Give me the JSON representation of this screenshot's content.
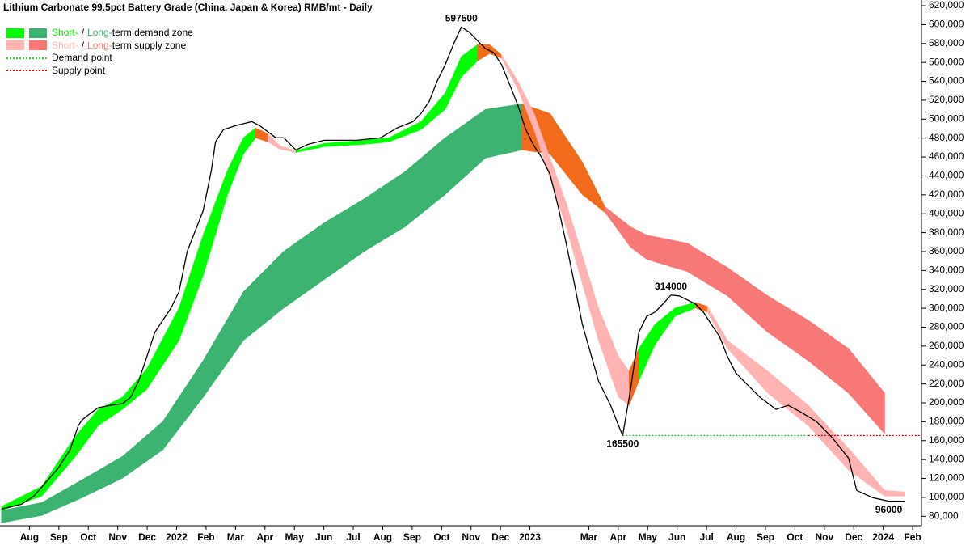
{
  "chart_data": {
    "type": "line",
    "title": "Lithium Carbonate 99.5pct Battery Grade (China, Japan & Korea) RMB/mt - Daily",
    "xlim": [
      0,
      31.3
    ],
    "xticks": [
      {
        "value": 1,
        "label": "Aug"
      },
      {
        "value": 2,
        "label": "Sep"
      },
      {
        "value": 3,
        "label": "Oct"
      },
      {
        "value": 4,
        "label": "Nov"
      },
      {
        "value": 5,
        "label": "Dec"
      },
      {
        "value": 6,
        "label": "2022"
      },
      {
        "value": 7,
        "label": "Feb"
      },
      {
        "value": 8,
        "label": "Mar"
      },
      {
        "value": 9,
        "label": "Apr"
      },
      {
        "value": 10,
        "label": "May"
      },
      {
        "value": 11,
        "label": "Jun"
      },
      {
        "value": 12,
        "label": "Jul"
      },
      {
        "value": 13,
        "label": "Aug"
      },
      {
        "value": 14,
        "label": "Sep"
      },
      {
        "value": 15,
        "label": "Oct"
      },
      {
        "value": 16,
        "label": "Nov"
      },
      {
        "value": 17,
        "label": "Dec"
      },
      {
        "value": 18,
        "label": "2023"
      },
      {
        "value": 20,
        "label": "Mar"
      },
      {
        "value": 21,
        "label": "Apr"
      },
      {
        "value": 22,
        "label": "May"
      },
      {
        "value": 23,
        "label": "Jun"
      },
      {
        "value": 24,
        "label": "Jul"
      },
      {
        "value": 25,
        "label": "Aug"
      },
      {
        "value": 26,
        "label": "Sep"
      },
      {
        "value": 27,
        "label": "Oct"
      },
      {
        "value": 28,
        "label": "Nov"
      },
      {
        "value": 29,
        "label": "Dec"
      },
      {
        "value": 30,
        "label": "2024"
      },
      {
        "value": 31,
        "label": "Feb"
      }
    ],
    "ylim": [
      70000,
      626000
    ],
    "yticks": [
      {
        "value": 80000,
        "label": "80,000"
      },
      {
        "value": 100000,
        "label": "100,000"
      },
      {
        "value": 120000,
        "label": "120,000"
      },
      {
        "value": 140000,
        "label": "140,000"
      },
      {
        "value": 160000,
        "label": "160,000"
      },
      {
        "value": 180000,
        "label": "180,000"
      },
      {
        "value": 200000,
        "label": "200,000"
      },
      {
        "value": 220000,
        "label": "220,000"
      },
      {
        "value": 240000,
        "label": "240,000"
      },
      {
        "value": 260000,
        "label": "260,000"
      },
      {
        "value": 280000,
        "label": "280,000"
      },
      {
        "value": 300000,
        "label": "300,000"
      },
      {
        "value": 320000,
        "label": "320,000"
      },
      {
        "value": 340000,
        "label": "340,000"
      },
      {
        "value": 360000,
        "label": "360,000"
      },
      {
        "value": 380000,
        "label": "380,000"
      },
      {
        "value": 400000,
        "label": "400,000"
      },
      {
        "value": 420000,
        "label": "420,000"
      },
      {
        "value": 440000,
        "label": "440,000"
      },
      {
        "value": 460000,
        "label": "460,000"
      },
      {
        "value": 480000,
        "label": "480,000"
      },
      {
        "value": 500000,
        "label": "500,000"
      },
      {
        "value": 520000,
        "label": "520,000"
      },
      {
        "value": 540000,
        "label": "540,000"
      },
      {
        "value": 560000,
        "label": "560,000"
      },
      {
        "value": 580000,
        "label": "580,000"
      },
      {
        "value": 600000,
        "label": "600,000"
      },
      {
        "value": 620000,
        "label": "620,000"
      }
    ],
    "grid": false,
    "bands": [
      {
        "x": [
          0.05,
          1.42,
          2.79,
          4.16,
          5.53,
          6.9,
          8.27,
          9.64,
          11.01,
          12.38,
          13.75,
          15.12,
          16.49,
          17.73,
          18.68,
          19.78,
          20.55,
          21.42,
          21.97,
          23.34,
          24.71,
          26.08,
          27.45,
          28.82,
          30.05
        ],
        "upper": [
          86000,
          94600,
          118600,
          143400,
          180300,
          244600,
          317400,
          360300,
          390300,
          416000,
          444300,
          480300,
          510300,
          516300,
          506000,
          454600,
          407400,
          386000,
          377400,
          368900,
          343100,
          313100,
          287400,
          257400,
          210300
        ],
        "lower": [
          73100,
          80900,
          99700,
          120300,
          150300,
          206000,
          266000,
          300300,
          330300,
          360300,
          386000,
          420300,
          458900,
          467400,
          463100,
          420300,
          401400,
          364600,
          351700,
          338900,
          313100,
          274600,
          244600,
          210300,
          167400
        ],
        "colors": [
          "#3cb371",
          "#3cb371",
          "#3cb371",
          "#3cb371",
          "#3cb371",
          "#3cb371",
          "#3cb371",
          "#3cb371",
          "#3cb371",
          "#3cb371",
          "#3cb371",
          "#3cb371",
          "#3cb371",
          "#f26a1b",
          "#f26a1b",
          "#f26a1b",
          "#f87878",
          "#f87878",
          "#f87878",
          "#f87878",
          "#f87878",
          "#f87878",
          "#f87878",
          "#f87878"
        ]
      },
      {
        "x": [
          0.05,
          1.42,
          2.52,
          3.34,
          4.16,
          4.99,
          6.08,
          6.9,
          7.73,
          8.27,
          8.68,
          9.1,
          9.51,
          10.05,
          11.01,
          12.38,
          13.21,
          14.3,
          15.12,
          15.67,
          16.22,
          16.63,
          17.04,
          17.59,
          18.14,
          19.23,
          20.33,
          21.01,
          21.37,
          21.7,
          22.25,
          22.93,
          23.62,
          24.03,
          24.71,
          26.08,
          27.45,
          28.82,
          30.05,
          30.74
        ],
        "upper": [
          90300,
          111700,
          163100,
          193100,
          206000,
          236000,
          300300,
          377400,
          446000,
          480300,
          490600,
          484600,
          471700,
          466600,
          474300,
          477700,
          480300,
          497400,
          527400,
          566000,
          578900,
          578900,
          567700,
          540300,
          506000,
          411700,
          300300,
          248900,
          233400,
          257400,
          283100,
          300300,
          306300,
          302000,
          266000,
          233400,
          197400,
          152000,
          107400,
          105700
        ],
        "lower": [
          86000,
          101400,
          141700,
          176000,
          193100,
          214600,
          266000,
          334600,
          420300,
          463100,
          480300,
          476000,
          468300,
          464900,
          470900,
          473400,
          476000,
          488900,
          510300,
          544600,
          561700,
          569400,
          564300,
          531700,
          488900,
          386000,
          266000,
          206000,
          197400,
          223100,
          261700,
          291700,
          300300,
          296000,
          257400,
          210300,
          176000,
          128900,
          101400,
          101400
        ],
        "colors": [
          "#00ff00",
          "#00ff00",
          "#00ff00",
          "#00ff00",
          "#00ff00",
          "#00ff00",
          "#00ff00",
          "#00ff00",
          "#00ff00",
          "#00ff00",
          "#f26a1b",
          "#ffb3b3",
          "#ffb3b3",
          "#00ff00",
          "#00ff00",
          "#00ff00",
          "#00ff00",
          "#00ff00",
          "#00ff00",
          "#00ff00",
          "#f26a1b",
          "#f26a1b",
          "#ffb3b3",
          "#ffb3b3",
          "#ffb3b3",
          "#ffb3b3",
          "#ffb3b3",
          "#ffb3b3",
          "#f26a1b",
          "#00ff00",
          "#00ff00",
          "#00ff00",
          "#f26a1b",
          "#ffb3b3",
          "#ffb3b3",
          "#ffb3b3",
          "#ffb3b3",
          "#ffb3b3",
          "#ffb3b3"
        ]
      }
    ],
    "series": [
      {
        "color": "#000000",
        "x": [
          0.05,
          0.74,
          1.15,
          1.56,
          1.97,
          2.38,
          2.66,
          2.79,
          3.07,
          3.34,
          3.75,
          4.16,
          4.44,
          4.71,
          4.99,
          5.26,
          5.53,
          5.81,
          6.08,
          6.36,
          6.63,
          6.9,
          7.18,
          7.32,
          7.59,
          8.0,
          8.55,
          8.82,
          9.37,
          9.64,
          10.05,
          10.47,
          11.01,
          12.11,
          12.93,
          13.48,
          14.03,
          14.3,
          14.58,
          14.85,
          15.12,
          15.4,
          15.67,
          15.95,
          16.22,
          16.49,
          16.77,
          17.04,
          17.32,
          17.59,
          17.86,
          18.14,
          18.41,
          18.68,
          18.96,
          19.23,
          19.51,
          19.78,
          20.33,
          20.74,
          21.01,
          21.15,
          21.42,
          21.7,
          21.97,
          22.25,
          22.52,
          22.79,
          23.07,
          23.34,
          23.62,
          23.89,
          24.16,
          24.44,
          24.71,
          24.99,
          25.26,
          25.81,
          26.36,
          26.77,
          27.18,
          27.73,
          28.27,
          28.82,
          29.1,
          29.64,
          30.19,
          30.74
        ],
        "values": [
          87700,
          92900,
          101400,
          116000,
          130600,
          150300,
          176000,
          182000,
          188900,
          194900,
          197400,
          199100,
          206000,
          223100,
          248900,
          274600,
          287400,
          300300,
          317400,
          360300,
          381700,
          403100,
          446000,
          476000,
          488900,
          493100,
          497400,
          493100,
          480300,
          480300,
          467400,
          473400,
          477700,
          477700,
          480300,
          490600,
          497400,
          506000,
          518900,
          540300,
          557400,
          578900,
          597500,
          591700,
          583100,
          574600,
          570300,
          557400,
          536000,
          514600,
          488900,
          471700,
          458900,
          441700,
          407400,
          368900,
          326000,
          283100,
          223100,
          197400,
          176000,
          165500,
          214600,
          274600,
          291700,
          296000,
          304600,
          314000,
          313100,
          309000,
          304600,
          296000,
          283100,
          270300,
          248900,
          231700,
          223100,
          206000,
          193100,
          197400,
          190600,
          180300,
          163100,
          141700,
          107400,
          99700,
          96000,
          96000
        ]
      }
    ],
    "reference_lines": [
      {
        "value": 165500,
        "x": [
          21.15,
          27.45
        ],
        "color": "#22dd22"
      },
      {
        "value": 165500,
        "x": [
          27.45,
          31.3
        ],
        "color": "#dd0000"
      }
    ],
    "annotations": [
      {
        "x": 15.67,
        "value": 597500,
        "position": "above"
      },
      {
        "x": 22.79,
        "value": 314000,
        "position": "above"
      },
      {
        "x": 21.15,
        "value": 165500,
        "position": "below"
      },
      {
        "x": 30.19,
        "value": 96000,
        "position": "below"
      }
    ],
    "legend": {
      "position": "top-left",
      "items": [
        {
          "swatches": [
            "#00ff00",
            "#3cb371"
          ],
          "parts": [
            {
              "text": "Short-",
              "color": "#00e600"
            },
            {
              "text": "/",
              "color": "#000000"
            },
            {
              "text": "Long-",
              "color": "#3cb371"
            },
            {
              "text": "term demand zone",
              "color": "#000000"
            }
          ]
        },
        {
          "swatches": [
            "#ffb3b3",
            "#f87878"
          ],
          "parts": [
            {
              "text": "Short-",
              "color": "#ffb3b3"
            },
            {
              "text": "/",
              "color": "#000000"
            },
            {
              "text": "Long-",
              "color": "#f87878"
            },
            {
              "text": "term supply zone",
              "color": "#000000"
            }
          ]
        },
        {
          "line": "#22dd22",
          "parts": [
            {
              "text": "Demand point",
              "color": "#000000"
            }
          ]
        },
        {
          "line": "#dd0000",
          "parts": [
            {
              "text": "Supply point",
              "color": "#000000"
            }
          ]
        }
      ]
    }
  }
}
